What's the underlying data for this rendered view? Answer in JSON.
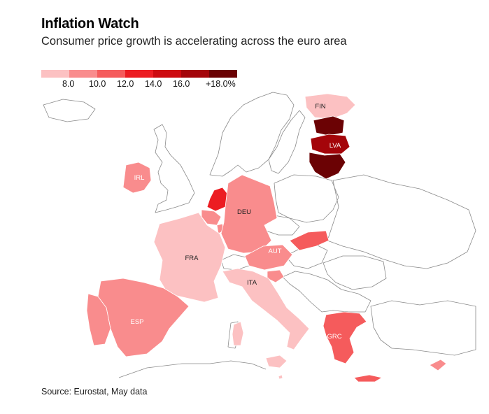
{
  "header": {
    "title": "Inflation Watch",
    "subtitle": "Consumer price growth is accelerating across the euro area"
  },
  "legend": {
    "bins": [
      {
        "color": "#fcc1c2",
        "label": ""
      },
      {
        "color": "#f98c8d",
        "label": "8.0"
      },
      {
        "color": "#f55b5c",
        "label": "10.0"
      },
      {
        "color": "#ec1c22",
        "label": "12.0"
      },
      {
        "color": "#cd0a10",
        "label": "14.0"
      },
      {
        "color": "#a4050a",
        "label": "16.0"
      },
      {
        "color": "#6b0204",
        "label": "+18.0%"
      }
    ]
  },
  "countries": [
    {
      "code": "FIN",
      "label": "FIN",
      "bin": 0
    },
    {
      "code": "EST",
      "label": "",
      "bin": 6
    },
    {
      "code": "LVA",
      "label": "LVA",
      "bin": 5
    },
    {
      "code": "LTU",
      "label": "",
      "bin": 6
    },
    {
      "code": "IRL",
      "label": "IRL",
      "bin": 1
    },
    {
      "code": "NLD",
      "label": "",
      "bin": 3
    },
    {
      "code": "BEL",
      "label": "",
      "bin": 1
    },
    {
      "code": "LUX",
      "label": "",
      "bin": 1
    },
    {
      "code": "DEU",
      "label": "DEU",
      "bin": 1
    },
    {
      "code": "FRA",
      "label": "FRA",
      "bin": 0
    },
    {
      "code": "AUT",
      "label": "AUT",
      "bin": 1
    },
    {
      "code": "SVK",
      "label": "",
      "bin": 2
    },
    {
      "code": "SVN",
      "label": "",
      "bin": 1
    },
    {
      "code": "ITA",
      "label": "ITA",
      "bin": 0
    },
    {
      "code": "ESP",
      "label": "ESP",
      "bin": 1
    },
    {
      "code": "PRT",
      "label": "",
      "bin": 1
    },
    {
      "code": "GRC",
      "label": "GRC",
      "bin": 2
    },
    {
      "code": "CYP",
      "label": "",
      "bin": 1
    },
    {
      "code": "MLT",
      "label": "",
      "bin": 0
    }
  ],
  "footer": {
    "source": "Source: Eurostat, May data"
  }
}
